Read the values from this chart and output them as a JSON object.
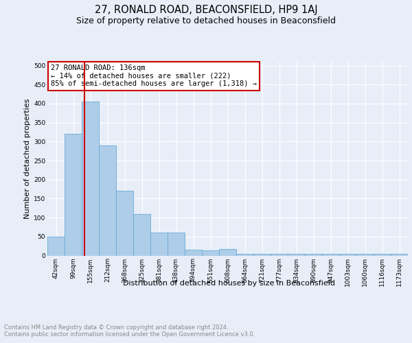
{
  "title": "27, RONALD ROAD, BEACONSFIELD, HP9 1AJ",
  "subtitle": "Size of property relative to detached houses in Beaconsfield",
  "xlabel": "Distribution of detached houses by size in Beaconsfield",
  "ylabel": "Number of detached properties",
  "footnote": "Contains HM Land Registry data © Crown copyright and database right 2024.\nContains public sector information licensed under the Open Government Licence v3.0.",
  "categories": [
    "42sqm",
    "99sqm",
    "155sqm",
    "212sqm",
    "268sqm",
    "325sqm",
    "381sqm",
    "438sqm",
    "494sqm",
    "551sqm",
    "608sqm",
    "664sqm",
    "721sqm",
    "777sqm",
    "834sqm",
    "890sqm",
    "947sqm",
    "1003sqm",
    "1060sqm",
    "1116sqm",
    "1173sqm"
  ],
  "values": [
    50,
    320,
    405,
    290,
    170,
    110,
    60,
    60,
    15,
    13,
    18,
    5,
    5,
    5,
    5,
    5,
    5,
    5,
    5,
    5,
    5
  ],
  "bar_color": "#aecde8",
  "bar_edge_color": "#6aaad4",
  "highlight_color": "#cc0000",
  "annotation_text": "27 RONALD ROAD: 136sqm\n← 14% of detached houses are smaller (222)\n85% of semi-detached houses are larger (1,318) →",
  "annotation_box_color": "#ffffff",
  "annotation_box_edge_color": "#cc0000",
  "ylim": [
    0,
    510
  ],
  "yticks": [
    0,
    50,
    100,
    150,
    200,
    250,
    300,
    350,
    400,
    450,
    500
  ],
  "bg_color": "#e8eef8",
  "plot_bg_color": "#e8eef8",
  "grid_color": "#ffffff",
  "title_fontsize": 10.5,
  "subtitle_fontsize": 9,
  "axis_label_fontsize": 8,
  "tick_fontsize": 6.5,
  "footnote_fontsize": 6,
  "annot_fontsize": 7.5
}
